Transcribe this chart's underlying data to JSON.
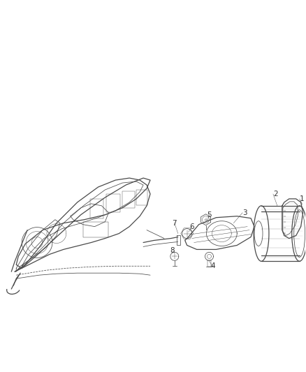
{
  "background_color": "#ffffff",
  "line_color": "#4a4a4a",
  "label_color": "#333333",
  "fig_width": 4.38,
  "fig_height": 5.33,
  "dpi": 100,
  "lw_main": 0.9,
  "lw_thin": 0.55,
  "lw_xtra": 0.35
}
